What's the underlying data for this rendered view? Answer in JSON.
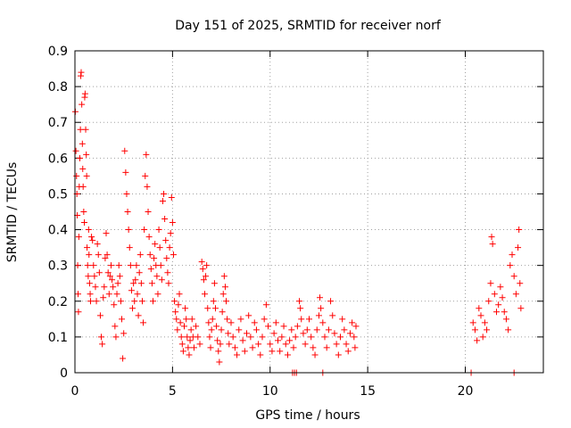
{
  "chart_data": {
    "type": "scatter",
    "title": "Day 151 of 2025, SRMTID for receiver norf",
    "xlabel": "GPS time / hours",
    "ylabel": "SRMTID / TECUs",
    "xlim": [
      0,
      24
    ],
    "ylim": [
      0,
      0.9
    ],
    "xticks": [
      0,
      5,
      10,
      15,
      20
    ],
    "yticks": [
      0,
      0.1,
      0.2,
      0.3,
      0.4,
      0.5,
      0.6,
      0.7,
      0.8,
      0.9
    ],
    "xtick_labels": [
      "0",
      "5",
      "10",
      "15",
      "20"
    ],
    "ytick_labels": [
      "0",
      "0.1",
      "0.2",
      "0.3",
      "0.4",
      "0.5",
      "0.6",
      "0.7",
      "0.8",
      "0.9"
    ],
    "grid": true,
    "marker": "+",
    "color": "#ff0000",
    "series": [
      {
        "name": "SRMTID",
        "points": [
          [
            0.02,
            0.73
          ],
          [
            0.05,
            0.62
          ],
          [
            0.08,
            0.55
          ],
          [
            0.1,
            0.5
          ],
          [
            0.12,
            0.44
          ],
          [
            0.14,
            0.3
          ],
          [
            0.16,
            0.22
          ],
          [
            0.18,
            0.17
          ],
          [
            0.2,
            0.38
          ],
          [
            0.22,
            0.52
          ],
          [
            0.25,
            0.6
          ],
          [
            0.28,
            0.68
          ],
          [
            0.3,
            0.83
          ],
          [
            0.32,
            0.84
          ],
          [
            0.35,
            0.75
          ],
          [
            0.38,
            0.64
          ],
          [
            0.4,
            0.57
          ],
          [
            0.42,
            0.52
          ],
          [
            0.45,
            0.45
          ],
          [
            0.48,
            0.42
          ],
          [
            0.5,
            0.77
          ],
          [
            0.52,
            0.78
          ],
          [
            0.55,
            0.68
          ],
          [
            0.58,
            0.61
          ],
          [
            0.6,
            0.55
          ],
          [
            0.62,
            0.35
          ],
          [
            0.65,
            0.3
          ],
          [
            0.68,
            0.27
          ],
          [
            0.7,
            0.4
          ],
          [
            0.72,
            0.33
          ],
          [
            0.75,
            0.25
          ],
          [
            0.78,
            0.22
          ],
          [
            0.8,
            0.2
          ],
          [
            0.85,
            0.38
          ],
          [
            0.9,
            0.37
          ],
          [
            0.95,
            0.3
          ],
          [
            1.0,
            0.27
          ],
          [
            1.05,
            0.24
          ],
          [
            1.1,
            0.2
          ],
          [
            1.15,
            0.36
          ],
          [
            1.2,
            0.33
          ],
          [
            1.25,
            0.28
          ],
          [
            1.3,
            0.16
          ],
          [
            1.35,
            0.1
          ],
          [
            1.4,
            0.08
          ],
          [
            1.45,
            0.21
          ],
          [
            1.5,
            0.24
          ],
          [
            1.55,
            0.32
          ],
          [
            1.6,
            0.39
          ],
          [
            1.65,
            0.33
          ],
          [
            1.7,
            0.28
          ],
          [
            1.75,
            0.22
          ],
          [
            1.8,
            0.27
          ],
          [
            1.85,
            0.3
          ],
          [
            1.9,
            0.26
          ],
          [
            1.95,
            0.24
          ],
          [
            2.0,
            0.19
          ],
          [
            2.05,
            0.13
          ],
          [
            2.1,
            0.1
          ],
          [
            2.15,
            0.22
          ],
          [
            2.2,
            0.25
          ],
          [
            2.25,
            0.3
          ],
          [
            2.3,
            0.27
          ],
          [
            2.35,
            0.2
          ],
          [
            2.4,
            0.15
          ],
          [
            2.45,
            0.04
          ],
          [
            2.5,
            0.11
          ],
          [
            2.55,
            0.62
          ],
          [
            2.6,
            0.56
          ],
          [
            2.65,
            0.5
          ],
          [
            2.7,
            0.45
          ],
          [
            2.75,
            0.4
          ],
          [
            2.8,
            0.35
          ],
          [
            2.85,
            0.3
          ],
          [
            2.9,
            0.23
          ],
          [
            2.95,
            0.18
          ],
          [
            3.0,
            0.25
          ],
          [
            3.05,
            0.2
          ],
          [
            3.1,
            0.26
          ],
          [
            3.15,
            0.3
          ],
          [
            3.2,
            0.22
          ],
          [
            3.25,
            0.16
          ],
          [
            3.3,
            0.28
          ],
          [
            3.35,
            0.33
          ],
          [
            3.4,
            0.25
          ],
          [
            3.45,
            0.2
          ],
          [
            3.5,
            0.14
          ],
          [
            3.55,
            0.4
          ],
          [
            3.6,
            0.55
          ],
          [
            3.65,
            0.61
          ],
          [
            3.7,
            0.52
          ],
          [
            3.75,
            0.45
          ],
          [
            3.8,
            0.38
          ],
          [
            3.85,
            0.33
          ],
          [
            3.9,
            0.29
          ],
          [
            3.95,
            0.25
          ],
          [
            4.0,
            0.2
          ],
          [
            4.05,
            0.32
          ],
          [
            4.1,
            0.36
          ],
          [
            4.15,
            0.3
          ],
          [
            4.2,
            0.27
          ],
          [
            4.25,
            0.22
          ],
          [
            4.3,
            0.4
          ],
          [
            4.35,
            0.35
          ],
          [
            4.4,
            0.3
          ],
          [
            4.45,
            0.26
          ],
          [
            4.5,
            0.48
          ],
          [
            4.55,
            0.5
          ],
          [
            4.6,
            0.43
          ],
          [
            4.65,
            0.37
          ],
          [
            4.7,
            0.32
          ],
          [
            4.75,
            0.28
          ],
          [
            4.8,
            0.25
          ],
          [
            4.85,
            0.35
          ],
          [
            4.9,
            0.39
          ],
          [
            4.95,
            0.49
          ],
          [
            5.0,
            0.42
          ],
          [
            5.05,
            0.33
          ],
          [
            5.1,
            0.2
          ],
          [
            5.15,
            0.17
          ],
          [
            5.2,
            0.15
          ],
          [
            5.25,
            0.12
          ],
          [
            5.3,
            0.19
          ],
          [
            5.35,
            0.22
          ],
          [
            5.4,
            0.14
          ],
          [
            5.45,
            0.1
          ],
          [
            5.5,
            0.08
          ],
          [
            5.55,
            0.06
          ],
          [
            5.6,
            0.13
          ],
          [
            5.65,
            0.18
          ],
          [
            5.7,
            0.15
          ],
          [
            5.75,
            0.1
          ],
          [
            5.8,
            0.07
          ],
          [
            5.85,
            0.05
          ],
          [
            5.9,
            0.09
          ],
          [
            5.95,
            0.12
          ],
          [
            6.0,
            0.15
          ],
          [
            6.05,
            0.1
          ],
          [
            6.1,
            0.07
          ],
          [
            6.2,
            0.13
          ],
          [
            6.3,
            0.1
          ],
          [
            6.4,
            0.08
          ],
          [
            6.5,
            0.31
          ],
          [
            6.55,
            0.29
          ],
          [
            6.6,
            0.26
          ],
          [
            6.65,
            0.22
          ],
          [
            6.7,
            0.27
          ],
          [
            6.75,
            0.3
          ],
          [
            6.8,
            0.18
          ],
          [
            6.85,
            0.14
          ],
          [
            6.9,
            0.1
          ],
          [
            6.95,
            0.07
          ],
          [
            7.0,
            0.12
          ],
          [
            7.05,
            0.15
          ],
          [
            7.1,
            0.2
          ],
          [
            7.15,
            0.25
          ],
          [
            7.2,
            0.18
          ],
          [
            7.25,
            0.13
          ],
          [
            7.3,
            0.09
          ],
          [
            7.35,
            0.06
          ],
          [
            7.4,
            0.03
          ],
          [
            7.45,
            0.08
          ],
          [
            7.5,
            0.12
          ],
          [
            7.55,
            0.17
          ],
          [
            7.6,
            0.22
          ],
          [
            7.65,
            0.27
          ],
          [
            7.7,
            0.24
          ],
          [
            7.75,
            0.2
          ],
          [
            7.8,
            0.15
          ],
          [
            7.85,
            0.11
          ],
          [
            7.9,
            0.08
          ],
          [
            8.0,
            0.14
          ],
          [
            8.1,
            0.1
          ],
          [
            8.2,
            0.07
          ],
          [
            8.3,
            0.05
          ],
          [
            8.4,
            0.12
          ],
          [
            8.5,
            0.15
          ],
          [
            8.6,
            0.09
          ],
          [
            8.7,
            0.06
          ],
          [
            8.8,
            0.11
          ],
          [
            8.9,
            0.16
          ],
          [
            9.0,
            0.1
          ],
          [
            9.1,
            0.07
          ],
          [
            9.2,
            0.14
          ],
          [
            9.3,
            0.12
          ],
          [
            9.4,
            0.08
          ],
          [
            9.5,
            0.05
          ],
          [
            9.6,
            0.1
          ],
          [
            9.7,
            0.15
          ],
          [
            9.8,
            0.19
          ],
          [
            9.9,
            0.13
          ],
          [
            10.0,
            0.08
          ],
          [
            10.1,
            0.06
          ],
          [
            10.2,
            0.11
          ],
          [
            10.3,
            0.14
          ],
          [
            10.4,
            0.09
          ],
          [
            10.5,
            0.06
          ],
          [
            10.6,
            0.1
          ],
          [
            10.7,
            0.13
          ],
          [
            10.8,
            0.08
          ],
          [
            10.9,
            0.05
          ],
          [
            11.0,
            0.09
          ],
          [
            11.1,
            0.12
          ],
          [
            11.2,
            0.07
          ],
          [
            11.3,
            0.1
          ],
          [
            11.4,
            0.13
          ],
          [
            11.5,
            0.2
          ],
          [
            11.55,
            0.18
          ],
          [
            11.6,
            0.15
          ],
          [
            11.7,
            0.11
          ],
          [
            11.8,
            0.08
          ],
          [
            11.9,
            0.12
          ],
          [
            12.0,
            0.15
          ],
          [
            12.1,
            0.1
          ],
          [
            12.2,
            0.07
          ],
          [
            12.3,
            0.05
          ],
          [
            12.4,
            0.12
          ],
          [
            12.5,
            0.16
          ],
          [
            12.55,
            0.21
          ],
          [
            12.6,
            0.18
          ],
          [
            12.7,
            0.14
          ],
          [
            12.8,
            0.1
          ],
          [
            12.9,
            0.07
          ],
          [
            13.0,
            0.12
          ],
          [
            13.1,
            0.2
          ],
          [
            13.2,
            0.16
          ],
          [
            13.3,
            0.11
          ],
          [
            13.4,
            0.08
          ],
          [
            13.5,
            0.05
          ],
          [
            13.6,
            0.1
          ],
          [
            13.7,
            0.15
          ],
          [
            13.8,
            0.12
          ],
          [
            13.9,
            0.08
          ],
          [
            14.0,
            0.06
          ],
          [
            14.1,
            0.11
          ],
          [
            14.2,
            0.14
          ],
          [
            14.3,
            0.1
          ],
          [
            14.35,
            0.07
          ],
          [
            14.4,
            0.13
          ],
          [
            20.4,
            0.14
          ],
          [
            20.5,
            0.12
          ],
          [
            20.6,
            0.09
          ],
          [
            20.7,
            0.18
          ],
          [
            20.8,
            0.16
          ],
          [
            20.9,
            0.1
          ],
          [
            21.0,
            0.14
          ],
          [
            21.1,
            0.12
          ],
          [
            21.2,
            0.2
          ],
          [
            21.3,
            0.25
          ],
          [
            21.35,
            0.38
          ],
          [
            21.4,
            0.36
          ],
          [
            21.5,
            0.22
          ],
          [
            21.6,
            0.17
          ],
          [
            21.7,
            0.19
          ],
          [
            21.8,
            0.24
          ],
          [
            21.9,
            0.21
          ],
          [
            22.0,
            0.17
          ],
          [
            22.1,
            0.15
          ],
          [
            22.2,
            0.12
          ],
          [
            22.3,
            0.3
          ],
          [
            22.4,
            0.33
          ],
          [
            22.5,
            0.27
          ],
          [
            22.6,
            0.22
          ],
          [
            22.7,
            0.35
          ],
          [
            22.75,
            0.4
          ],
          [
            22.8,
            0.25
          ],
          [
            22.85,
            0.18
          ],
          [
            11.15,
            0.0
          ],
          [
            11.25,
            0.0
          ],
          [
            11.35,
            0.0
          ],
          [
            12.7,
            0.0
          ],
          [
            20.3,
            0.0
          ],
          [
            22.5,
            0.0
          ]
        ]
      }
    ]
  }
}
